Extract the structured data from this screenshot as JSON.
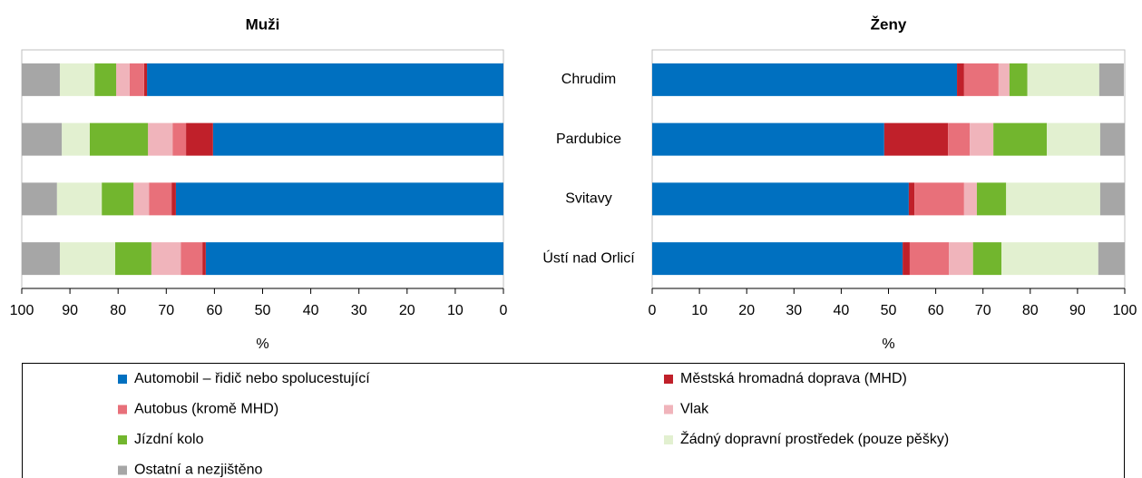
{
  "chart_data": [
    {
      "type": "bar",
      "orientation": "horizontal",
      "title": "Muži",
      "xlabel": "%",
      "categories": [
        "Chrudim",
        "Pardubice",
        "Svitavy",
        "Ústí nad Orlicí"
      ],
      "xlim": [
        100,
        0
      ],
      "xticks": [
        100,
        90,
        80,
        70,
        60,
        50,
        40,
        30,
        20,
        10,
        0
      ],
      "series": [
        {
          "name": "Automobil – řidič nebo spolucestující",
          "color": "#0070c0",
          "values": [
            74.0,
            60.3,
            68.0,
            61.8
          ]
        },
        {
          "name": "Městská hromadná doprava (MHD)",
          "color": "#c0202a",
          "values": [
            0.6,
            5.6,
            0.9,
            0.7
          ]
        },
        {
          "name": "Autobus (kromě MHD)",
          "color": "#e8707a",
          "values": [
            3.0,
            2.8,
            4.7,
            4.5
          ]
        },
        {
          "name": "Vlak",
          "color": "#f0b4bb",
          "values": [
            2.8,
            5.1,
            3.2,
            6.1
          ]
        },
        {
          "name": "Jízdní kolo",
          "color": "#72b62e",
          "values": [
            4.5,
            12.1,
            6.6,
            7.5
          ]
        },
        {
          "name": "Žádný dopravní prostředek (pouze pěšky)",
          "color": "#e2f0d0",
          "values": [
            7.2,
            5.8,
            9.3,
            11.5
          ]
        },
        {
          "name": "Ostatní a nezjištěno",
          "color": "#a6a6a6",
          "values": [
            7.9,
            8.3,
            7.3,
            7.9
          ]
        }
      ]
    },
    {
      "type": "bar",
      "orientation": "horizontal",
      "title": "Ženy",
      "xlabel": "%",
      "categories": [
        "Chrudim",
        "Pardubice",
        "Svitavy",
        "Ústí nad Orlicí"
      ],
      "xlim": [
        0,
        100
      ],
      "xticks": [
        0,
        10,
        20,
        30,
        40,
        50,
        60,
        70,
        80,
        90,
        100
      ],
      "series": [
        {
          "name": "Automobil – řidič nebo spolucestující",
          "color": "#0070c0",
          "values": [
            64.5,
            49.1,
            54.3,
            53.0
          ]
        },
        {
          "name": "Městská hromadná doprava (MHD)",
          "color": "#c0202a",
          "values": [
            1.5,
            13.5,
            1.2,
            1.5
          ]
        },
        {
          "name": "Autobus (kromě MHD)",
          "color": "#e8707a",
          "values": [
            7.3,
            4.6,
            10.5,
            8.3
          ]
        },
        {
          "name": "Vlak",
          "color": "#f0b4bb",
          "values": [
            2.3,
            5.0,
            2.7,
            5.1
          ]
        },
        {
          "name": "Jízdní kolo",
          "color": "#72b62e",
          "values": [
            3.8,
            11.3,
            6.2,
            6.0
          ]
        },
        {
          "name": "Žádný dopravní prostředek (pouze pěšky)",
          "color": "#e2f0d0",
          "values": [
            15.2,
            11.3,
            19.9,
            20.5
          ]
        },
        {
          "name": "Ostatní a nezjištěno",
          "color": "#a6a6a6",
          "values": [
            5.2,
            5.2,
            5.2,
            5.6
          ]
        }
      ]
    }
  ]
}
